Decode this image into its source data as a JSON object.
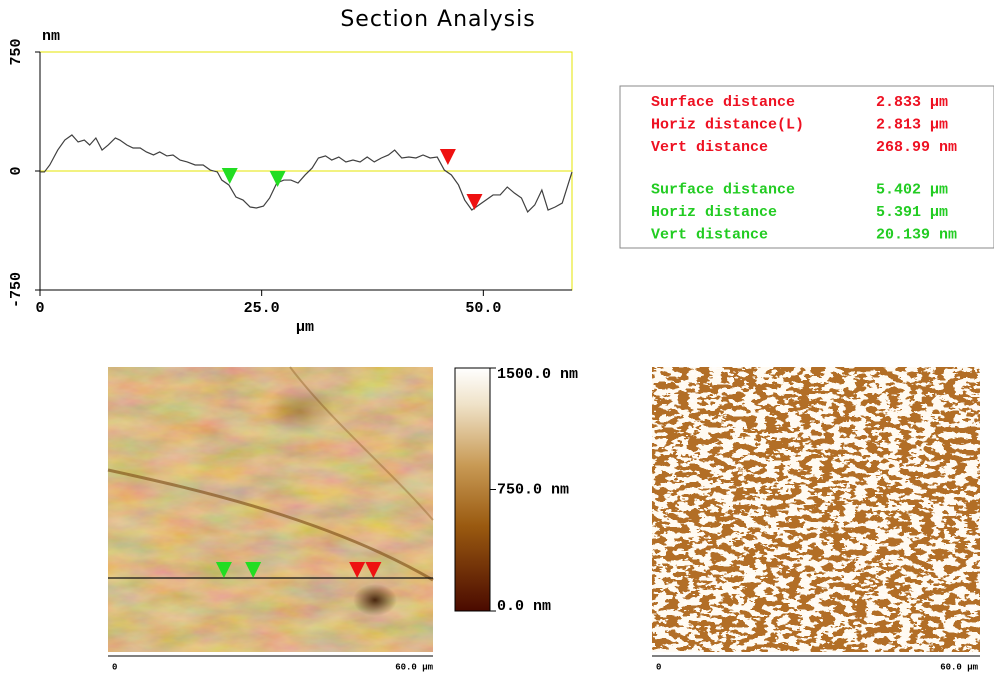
{
  "chart_data": {
    "type": "line",
    "title": "Section Analysis",
    "y_unit": "nm",
    "x_label": "µm",
    "xlim": [
      0,
      60
    ],
    "ylim": [
      -750,
      750
    ],
    "yticks": [
      -750,
      0,
      750
    ],
    "xticks": [
      0,
      {
        "value": 25,
        "label": "25.0"
      },
      {
        "value": 50,
        "label": "50.0"
      }
    ],
    "hline": 0,
    "hline_color": "#e6e600",
    "frame_color": "#e6e600",
    "x": [
      0,
      0.5,
      1.1,
      2.0,
      2.8,
      3.6,
      4.3,
      5.0,
      5.6,
      6.3,
      7.0,
      7.7,
      8.5,
      9.0,
      9.8,
      10.5,
      11.3,
      12.0,
      12.8,
      13.5,
      14.3,
      15.0,
      15.8,
      16.6,
      17.5,
      18.4,
      19.2,
      20.0,
      20.5,
      21.3,
      22.1,
      22.9,
      23.7,
      24.4,
      25.2,
      25.9,
      26.7,
      27.5,
      28.3,
      29.1,
      29.9,
      30.7,
      31.4,
      32.2,
      32.9,
      33.7,
      34.5,
      35.3,
      36.1,
      36.9,
      37.7,
      38.5,
      39.3,
      40.0,
      40.8,
      41.6,
      42.4,
      43.2,
      44.0,
      44.8,
      45.6,
      46.4,
      47.2,
      47.9,
      48.7,
      49.5,
      50.3,
      51.1,
      51.9,
      52.7,
      53.5,
      54.3,
      55.0,
      55.8,
      56.6,
      57.3,
      58.1,
      58.9,
      60.0
    ],
    "series": [
      {
        "color": "#404040",
        "values": [
          -6,
          -6,
          38,
          132,
          195,
          227,
          183,
          195,
          164,
          208,
          132,
          164,
          208,
          195,
          164,
          145,
          145,
          120,
          101,
          120,
          95,
          101,
          69,
          57,
          38,
          38,
          6,
          -6,
          -57,
          -88,
          -164,
          -183,
          -227,
          -233,
          -221,
          -170,
          -76,
          -57,
          -57,
          -76,
          -25,
          19,
          82,
          95,
          69,
          88,
          57,
          69,
          57,
          88,
          57,
          82,
          101,
          132,
          82,
          88,
          82,
          101,
          82,
          88,
          6,
          -25,
          -88,
          -183,
          -246,
          -214,
          -183,
          -151,
          -151,
          -101,
          -139,
          -170,
          -258,
          -214,
          -120,
          -246,
          -227,
          -202,
          -6
        ]
      }
    ],
    "markers": [
      {
        "x": 21.4,
        "y": -82,
        "color": "#22dd22"
      },
      {
        "x": 26.8,
        "y": -101,
        "color": "#22dd22"
      },
      {
        "x": 46.0,
        "y": 38,
        "color": "#ee1111"
      },
      {
        "x": 49.0,
        "y": -246,
        "color": "#ee1111"
      }
    ]
  },
  "measurements": [
    {
      "color": "#ee1122",
      "rows": [
        [
          "Surface distance",
          "2.833 µm"
        ],
        [
          "Horiz distance(L)",
          "2.813 µm"
        ],
        [
          "Vert distance",
          "268.99 nm"
        ]
      ]
    },
    {
      "color": "#22cc22",
      "rows": [
        [
          "Surface distance",
          "5.402 µm"
        ],
        [
          "Horiz distance",
          "5.391 µm"
        ],
        [
          "Vert distance",
          "20.139 nm"
        ]
      ]
    }
  ],
  "height_image": {
    "axis_start": "0",
    "axis_end": "60.0 µm",
    "colorbar": {
      "lim": [
        0,
        1500
      ],
      "ticks": [
        {
          "value": 1500,
          "label": "1500.0 nm"
        },
        {
          "value": 750,
          "label": "750.0 nm"
        },
        {
          "value": 0,
          "label": "0.0 nm"
        }
      ]
    }
  },
  "amplitude_image": {
    "axis_start": "0",
    "axis_end": "60.0 µm"
  }
}
